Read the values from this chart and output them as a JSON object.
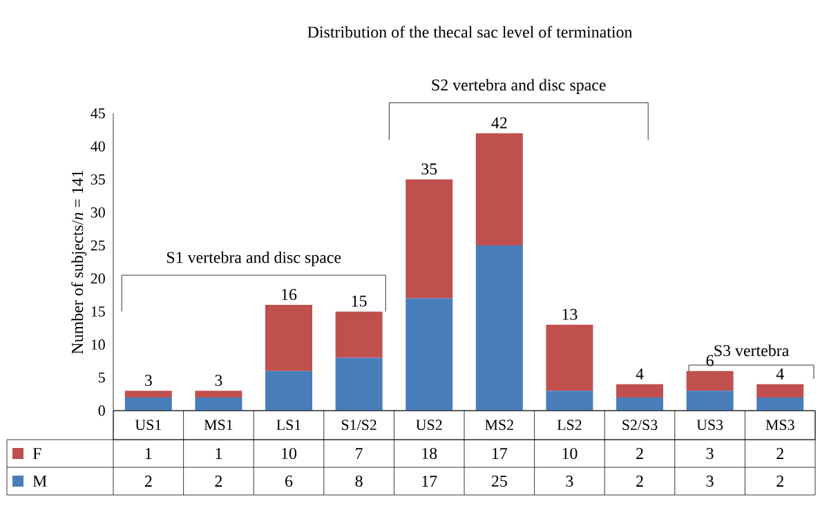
{
  "chart_data": {
    "type": "bar",
    "stacked": true,
    "title": "Distribution of the thecal sac level of termination",
    "ylabel": "Number of subjects/*n* = 141",
    "categories": [
      "US1",
      "MS1",
      "LS1",
      "S1/S2",
      "US2",
      "MS2",
      "LS2",
      "S2/S3",
      "US3",
      "MS3"
    ],
    "series": [
      {
        "name": "M",
        "color": "#4a7ebb",
        "values": [
          2,
          2,
          6,
          8,
          17,
          25,
          3,
          2,
          3,
          2
        ]
      },
      {
        "name": "F",
        "color": "#c0504d",
        "values": [
          1,
          1,
          10,
          7,
          18,
          17,
          10,
          2,
          3,
          2
        ]
      }
    ],
    "totals": [
      "3",
      "3",
      "16",
      "15",
      "35",
      "42",
      "13",
      "4",
      "6",
      "4"
    ],
    "data_labels": true,
    "legend": "bottom left",
    "ylim": [
      0,
      45
    ],
    "yticks": [
      0,
      5,
      10,
      15,
      20,
      25,
      30,
      35,
      40,
      45
    ],
    "annotations": [
      "S1 vertebra and disc space",
      "S2 vertebra and disc space",
      "S3 vertebra"
    ]
  }
}
